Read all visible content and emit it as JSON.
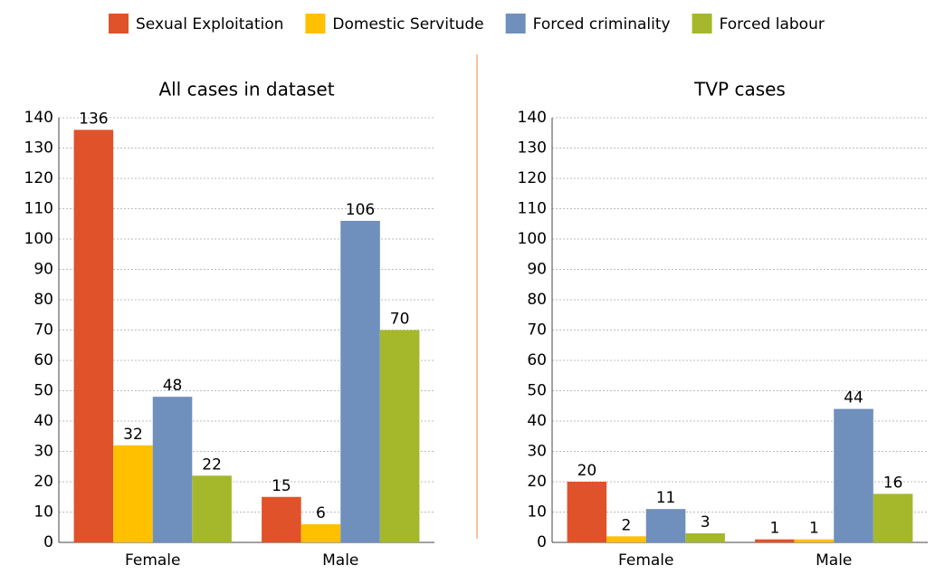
{
  "chart_data": [
    {
      "type": "bar",
      "title": "All cases in dataset",
      "categories": [
        "Female",
        "Male"
      ],
      "series": [
        {
          "name": "Sexual Exploitation",
          "color": "#e0522a",
          "values": [
            136,
            15
          ]
        },
        {
          "name": "Domestic Servitude",
          "color": "#ffc000",
          "values": [
            32,
            6
          ]
        },
        {
          "name": "Forced criminality",
          "color": "#6f8fbc",
          "values": [
            48,
            106
          ]
        },
        {
          "name": "Forced labour",
          "color": "#a5b82c",
          "values": [
            22,
            70
          ]
        }
      ],
      "ylim": [
        0,
        140
      ],
      "yticks": [
        0,
        10,
        20,
        30,
        40,
        50,
        60,
        70,
        80,
        90,
        100,
        110,
        120,
        130,
        140
      ],
      "grid": true
    },
    {
      "type": "bar",
      "title": "TVP cases",
      "categories": [
        "Female",
        "Male"
      ],
      "series": [
        {
          "values": [
            20,
            1
          ]
        },
        {
          "values": [
            2,
            1
          ]
        },
        {
          "values": [
            11,
            44
          ]
        },
        {
          "values": [
            3,
            16
          ]
        }
      ],
      "ylim": [
        0,
        140
      ],
      "yticks": [
        0,
        10,
        20,
        30,
        40,
        50,
        60,
        70,
        80,
        90,
        100,
        110,
        120,
        130,
        140
      ],
      "grid": true
    }
  ]
}
